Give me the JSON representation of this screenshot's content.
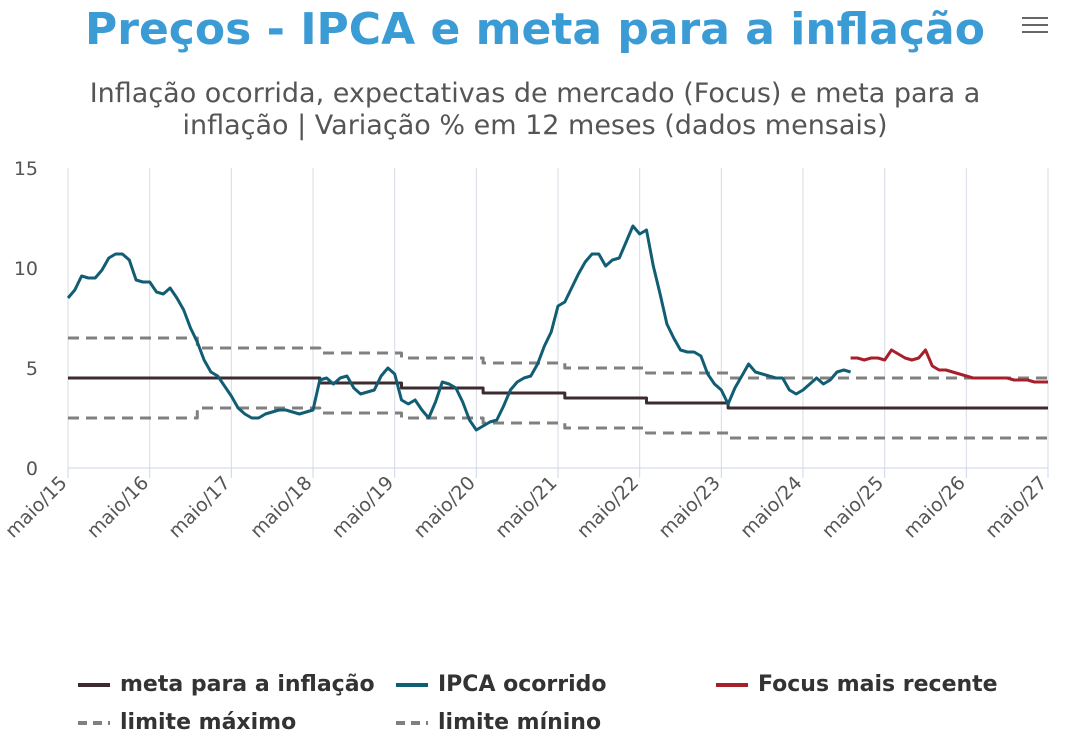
{
  "header": {
    "title": "Preços - IPCA e meta para a inflação",
    "subtitle": "Inflação ocorrida, expectativas de mercado (Focus) e meta para a inflação | Variação % em 12 meses (dados mensais)",
    "menu_icon": "hamburger-menu-icon"
  },
  "legend": [
    {
      "label": "meta para a inflação",
      "color": "#3d2b2f",
      "style": "solid"
    },
    {
      "label": "IPCA ocorrido",
      "color": "#115e74",
      "style": "solid"
    },
    {
      "label": "Focus mais recente",
      "color": "#a61f2a",
      "style": "solid"
    },
    {
      "label": "limite máximo",
      "color": "#808080",
      "style": "dashed"
    },
    {
      "label": "limite mínino",
      "color": "#808080",
      "style": "dashed"
    }
  ],
  "chart_data": {
    "type": "line",
    "title": "Preços - IPCA e meta para a inflação",
    "subtitle": "Inflação ocorrida, expectativas de mercado (Focus) e meta para a inflação | Variação % em 12 meses (dados mensais)",
    "xlabel": "",
    "ylabel": "",
    "ylim": [
      0,
      15
    ],
    "yticks": [
      0,
      5,
      10,
      15
    ],
    "xlim": [
      "2015-05",
      "2027-05"
    ],
    "xticks": [
      "maio/15",
      "maio/16",
      "maio/17",
      "maio/18",
      "maio/19",
      "maio/20",
      "maio/21",
      "maio/22",
      "maio/23",
      "maio/24",
      "maio/25",
      "maio/26",
      "maio/27"
    ],
    "grid": "vertical",
    "legend_position": "bottom",
    "series": [
      {
        "name": "limite máximo",
        "color": "#808080",
        "dash": true,
        "x": [
          "2015-05",
          "2016-12",
          "2016-12",
          "2018-06",
          "2018-06",
          "2019-06",
          "2019-06",
          "2020-06",
          "2020-06",
          "2021-06",
          "2021-06",
          "2022-06",
          "2022-06",
          "2023-06",
          "2023-06",
          "2027-05"
        ],
        "y": [
          6.5,
          6.5,
          6.0,
          6.0,
          5.75,
          5.75,
          5.5,
          5.5,
          5.25,
          5.25,
          5.0,
          5.0,
          4.75,
          4.75,
          4.5,
          4.5
        ]
      },
      {
        "name": "limite mínino",
        "color": "#808080",
        "dash": true,
        "x": [
          "2015-05",
          "2016-12",
          "2016-12",
          "2018-06",
          "2018-06",
          "2019-06",
          "2019-06",
          "2020-06",
          "2020-06",
          "2021-06",
          "2021-06",
          "2022-06",
          "2022-06",
          "2023-06",
          "2023-06",
          "2027-05"
        ],
        "y": [
          2.5,
          2.5,
          3.0,
          3.0,
          2.75,
          2.75,
          2.5,
          2.5,
          2.25,
          2.25,
          2.0,
          2.0,
          1.75,
          1.75,
          1.5,
          1.5
        ]
      },
      {
        "name": "meta para a inflação",
        "color": "#3d2b2f",
        "dash": false,
        "x": [
          "2015-05",
          "2018-06",
          "2018-06",
          "2019-06",
          "2019-06",
          "2020-06",
          "2020-06",
          "2021-06",
          "2021-06",
          "2022-06",
          "2022-06",
          "2023-06",
          "2023-06",
          "2027-05"
        ],
        "y": [
          4.5,
          4.5,
          4.25,
          4.25,
          4.0,
          4.0,
          3.75,
          3.75,
          3.5,
          3.5,
          3.25,
          3.25,
          3.0,
          3.0
        ]
      },
      {
        "name": "IPCA ocorrido",
        "color": "#115e74",
        "dash": false,
        "x": [
          "2015-05",
          "2015-06",
          "2015-07",
          "2015-08",
          "2015-09",
          "2015-10",
          "2015-11",
          "2015-12",
          "2016-01",
          "2016-02",
          "2016-03",
          "2016-04",
          "2016-05",
          "2016-06",
          "2016-07",
          "2016-08",
          "2016-09",
          "2016-10",
          "2016-11",
          "2016-12",
          "2017-01",
          "2017-02",
          "2017-03",
          "2017-04",
          "2017-05",
          "2017-06",
          "2017-07",
          "2017-08",
          "2017-09",
          "2017-10",
          "2017-11",
          "2017-12",
          "2018-01",
          "2018-02",
          "2018-03",
          "2018-04",
          "2018-05",
          "2018-06",
          "2018-07",
          "2018-08",
          "2018-09",
          "2018-10",
          "2018-11",
          "2018-12",
          "2019-01",
          "2019-02",
          "2019-03",
          "2019-04",
          "2019-05",
          "2019-06",
          "2019-07",
          "2019-08",
          "2019-09",
          "2019-10",
          "2019-11",
          "2019-12",
          "2020-01",
          "2020-02",
          "2020-03",
          "2020-04",
          "2020-05",
          "2020-06",
          "2020-07",
          "2020-08",
          "2020-09",
          "2020-10",
          "2020-11",
          "2020-12",
          "2021-01",
          "2021-02",
          "2021-03",
          "2021-04",
          "2021-05",
          "2021-06",
          "2021-07",
          "2021-08",
          "2021-09",
          "2021-10",
          "2021-11",
          "2021-12",
          "2022-01",
          "2022-02",
          "2022-03",
          "2022-04",
          "2022-05",
          "2022-06",
          "2022-07",
          "2022-08",
          "2022-09",
          "2022-10",
          "2022-11",
          "2022-12",
          "2023-01",
          "2023-02",
          "2023-03",
          "2023-04",
          "2023-05",
          "2023-06",
          "2023-07",
          "2023-08",
          "2023-09",
          "2023-10",
          "2023-11",
          "2023-12",
          "2024-01",
          "2024-02",
          "2024-03",
          "2024-04",
          "2024-05",
          "2024-06",
          "2024-07",
          "2024-08",
          "2024-09",
          "2024-10",
          "2024-11",
          "2024-12"
        ],
        "y": [
          8.5,
          8.9,
          9.6,
          9.5,
          9.5,
          9.9,
          10.5,
          10.7,
          10.7,
          10.4,
          9.4,
          9.3,
          9.3,
          8.8,
          8.7,
          9.0,
          8.5,
          7.9,
          7.0,
          6.3,
          5.4,
          4.8,
          4.6,
          4.1,
          3.6,
          3.0,
          2.7,
          2.5,
          2.5,
          2.7,
          2.8,
          2.9,
          2.9,
          2.8,
          2.7,
          2.8,
          2.9,
          4.4,
          4.5,
          4.2,
          4.5,
          4.6,
          4.0,
          3.7,
          3.8,
          3.9,
          4.6,
          5.0,
          4.7,
          3.4,
          3.2,
          3.4,
          2.9,
          2.5,
          3.3,
          4.3,
          4.2,
          4.0,
          3.3,
          2.4,
          1.9,
          2.1,
          2.3,
          2.4,
          3.1,
          3.9,
          4.3,
          4.5,
          4.6,
          5.2,
          6.1,
          6.8,
          8.1,
          8.3,
          9.0,
          9.7,
          10.3,
          10.7,
          10.7,
          10.1,
          10.4,
          10.5,
          11.3,
          12.1,
          11.7,
          11.9,
          10.1,
          8.7,
          7.2,
          6.5,
          5.9,
          5.8,
          5.8,
          5.6,
          4.7,
          4.2,
          3.9,
          3.2,
          4.0,
          4.6,
          5.2,
          4.8,
          4.7,
          4.6,
          4.5,
          4.5,
          3.9,
          3.7,
          3.9,
          4.2,
          4.5,
          4.2,
          4.4,
          4.8,
          4.9,
          4.8
        ]
      },
      {
        "name": "Focus mais recente",
        "color": "#a61f2a",
        "dash": false,
        "x": [
          "2024-12",
          "2025-01",
          "2025-02",
          "2025-03",
          "2025-04",
          "2025-05",
          "2025-06",
          "2025-07",
          "2025-08",
          "2025-09",
          "2025-10",
          "2025-11",
          "2025-12",
          "2026-01",
          "2026-02",
          "2026-03",
          "2026-04",
          "2026-05",
          "2026-06",
          "2026-07",
          "2026-08",
          "2026-09",
          "2026-10",
          "2026-11",
          "2026-12",
          "2027-01",
          "2027-02",
          "2027-03",
          "2027-04",
          "2027-05"
        ],
        "y": [
          5.5,
          5.5,
          5.4,
          5.5,
          5.5,
          5.4,
          5.9,
          5.7,
          5.5,
          5.4,
          5.5,
          5.9,
          5.1,
          4.9,
          4.9,
          4.8,
          4.7,
          4.6,
          4.5,
          4.5,
          4.5,
          4.5,
          4.5,
          4.5,
          4.4,
          4.4,
          4.4,
          4.3,
          4.3,
          4.3
        ]
      }
    ]
  }
}
